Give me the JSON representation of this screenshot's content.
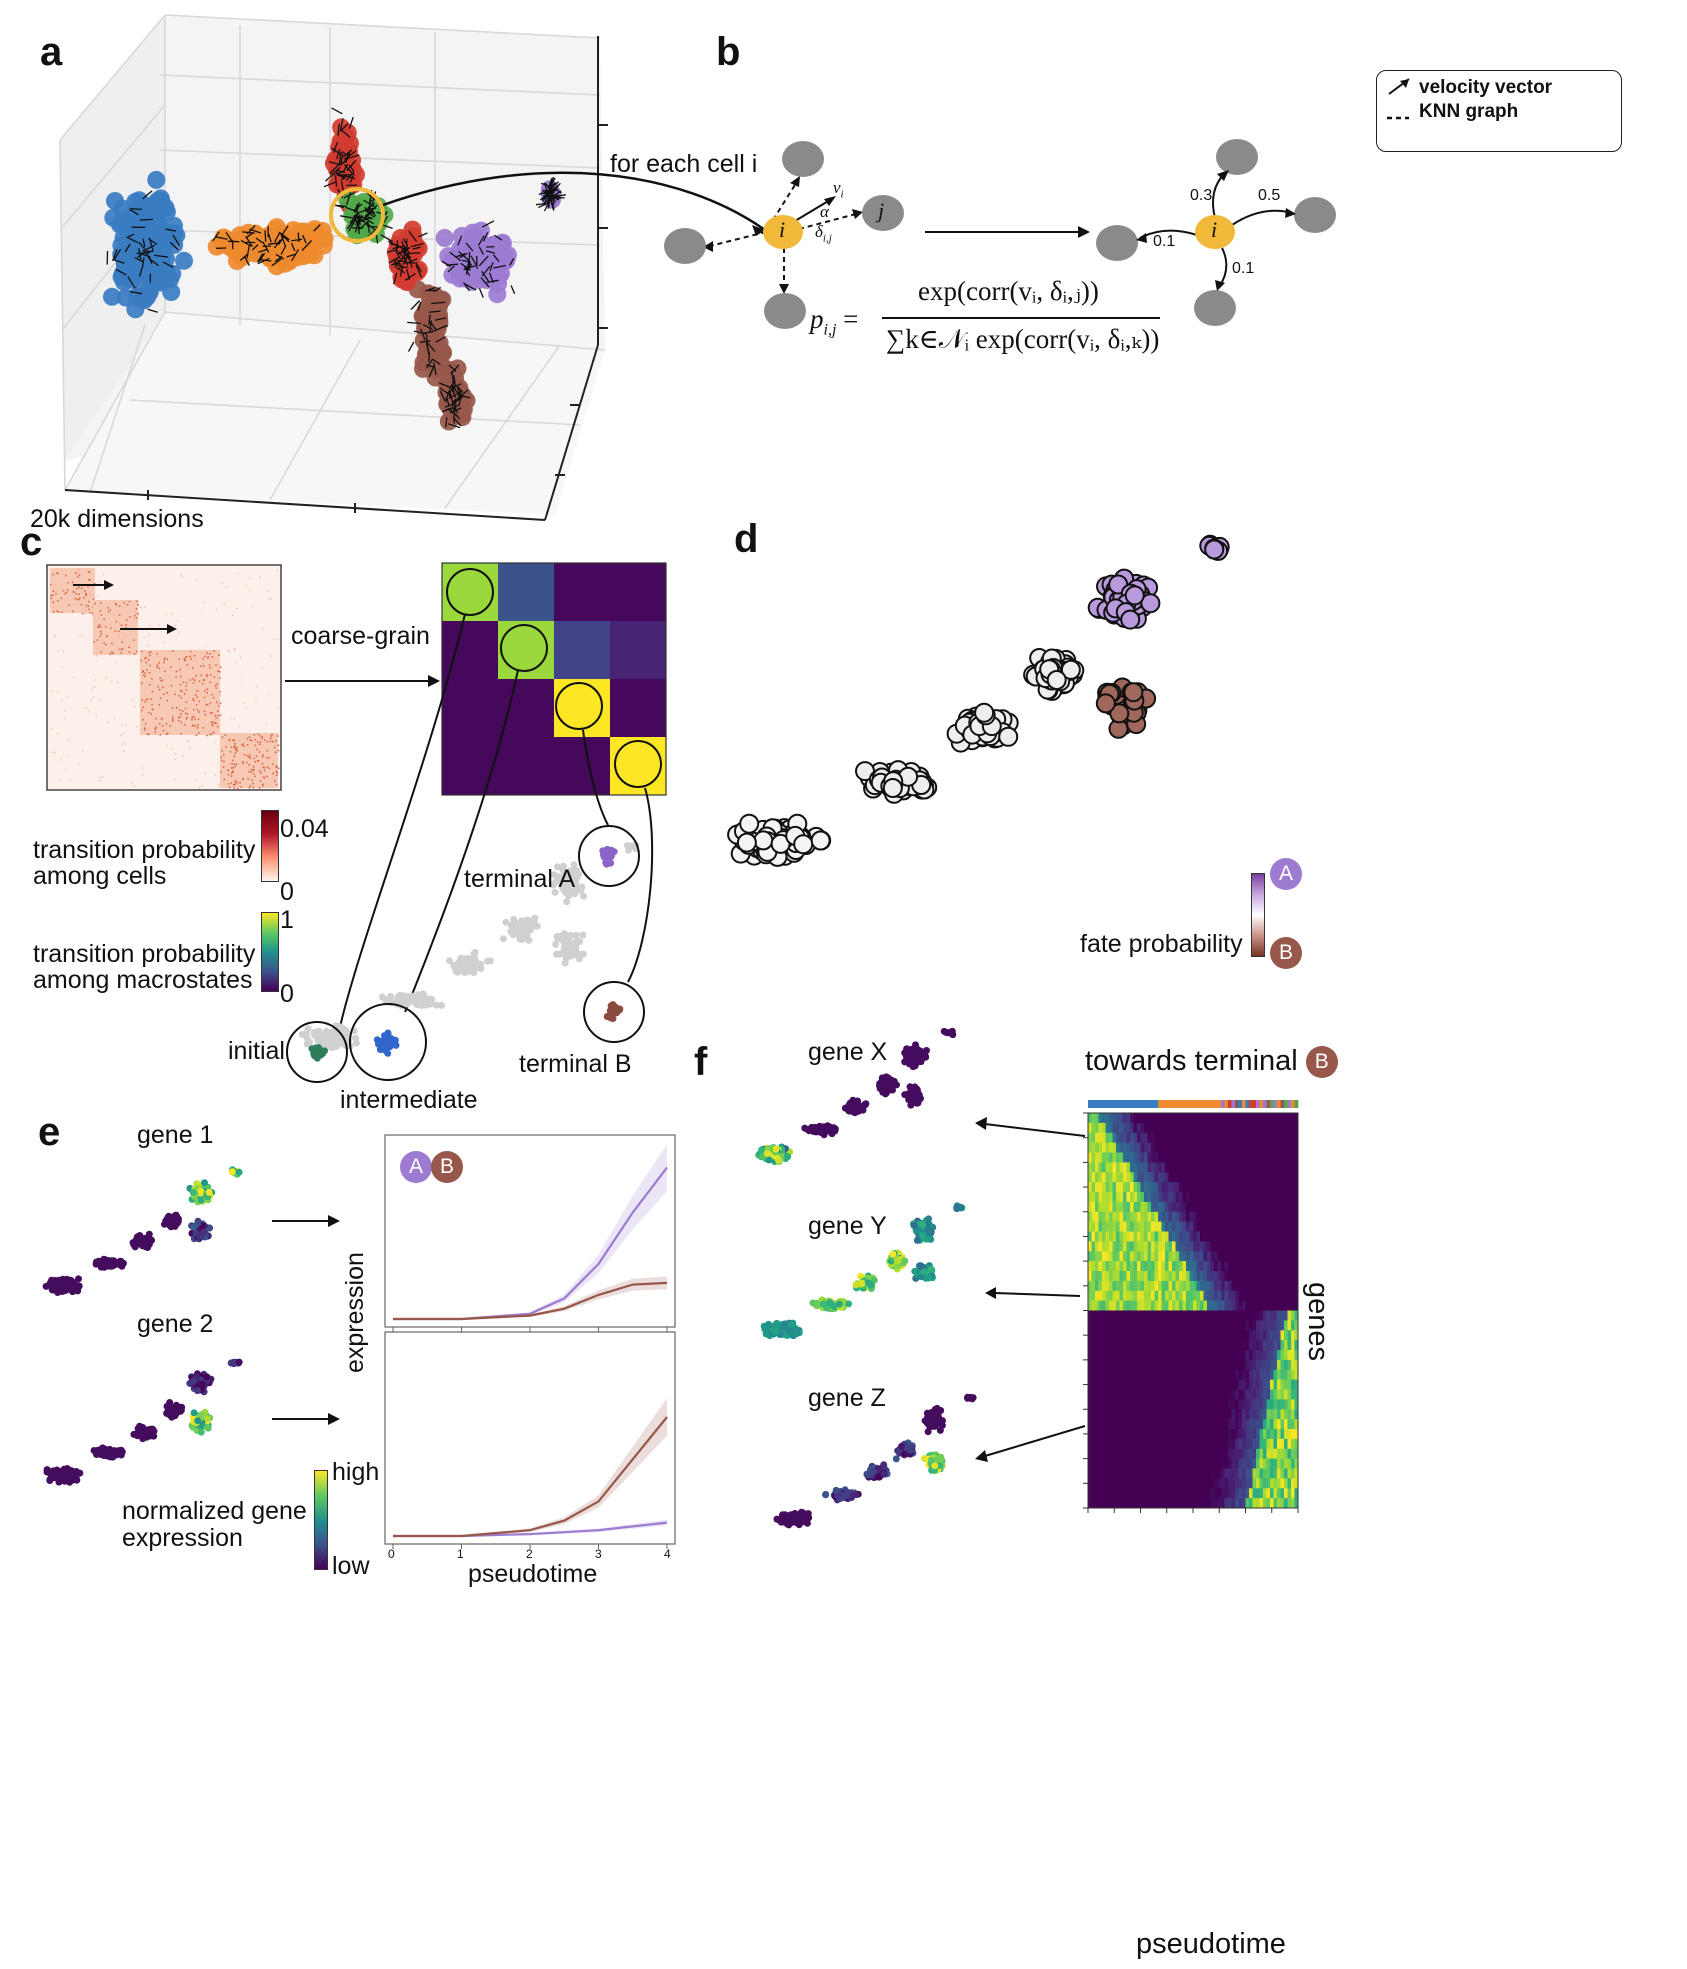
{
  "panels": {
    "a": "a",
    "b": "b",
    "c": "c",
    "d": "d",
    "e": "e",
    "f": "f"
  },
  "panel_a": {
    "dimension_label": "20k dimensions"
  },
  "panel_b": {
    "step_label": "for each cell i",
    "legend": {
      "velocity": "velocity vector",
      "knn": "KNN graph"
    },
    "node_i": "i",
    "node_j": "j",
    "vec_v": "v",
    "vec_v_sub": "i",
    "angle": "α",
    "delta": "δ",
    "delta_sub": "i,j",
    "formula_lhs": "p",
    "formula_lhs_sub": "i,j",
    "formula_eq": "=",
    "formula_num": "exp(corr(vᵢ, δᵢ,ⱼ))",
    "formula_den": "∑k∈𝒩ᵢ exp(corr(vᵢ, δᵢ,ₖ))",
    "weights": [
      "0.3",
      "0.5",
      "0.1",
      "0.1"
    ]
  },
  "panel_c": {
    "coarse_grain": "coarse-grain",
    "cb1_label_1": "transition probability",
    "cb1_label_2": "among cells",
    "cb1_max": "0.04",
    "cb1_min": "0",
    "cb2_label_1": "transition probability",
    "cb2_label_2": "among macrostates",
    "cb2_max": "1",
    "cb2_min": "0",
    "states": {
      "initial": "initial",
      "intermediate": "intermediate",
      "terminal_a": "terminal A",
      "terminal_b": "terminal B"
    },
    "macro_matrix": [
      [
        0.85,
        0.25,
        0.02,
        0.02
      ],
      [
        0.02,
        0.85,
        0.2,
        0.1
      ],
      [
        0.02,
        0.02,
        1.0,
        0.02
      ],
      [
        0.02,
        0.02,
        0.02,
        1.0
      ]
    ]
  },
  "panel_d": {
    "fate_label": "fate probability",
    "badge_a": "A",
    "badge_b": "B"
  },
  "panel_e": {
    "gene1": "gene 1",
    "gene2": "gene 2",
    "ylabel": "expression",
    "xlabel": "pseudotime",
    "badge_a": "A",
    "badge_b": "B",
    "cbar_title_1": "normalized gene",
    "cbar_title_2": "expression",
    "cbar_high": "high",
    "cbar_low": "low",
    "xticks": [
      "0",
      "1",
      "2",
      "3",
      "4"
    ]
  },
  "panel_f": {
    "gene_x": "gene X",
    "gene_y": "gene Y",
    "gene_z": "gene Z",
    "title": "towards terminal",
    "badge_b": "B",
    "ylabel": "genes",
    "xlabel": "pseudotime"
  },
  "colors": {
    "blue": "#3a7cc2",
    "orange": "#ee8a2e",
    "green": "#52a84a",
    "red": "#d13c30",
    "purple": "#9c7bd1",
    "brown": "#97574a",
    "yellow_node": "#f0b93a",
    "gray_node": "#8a8a8a",
    "viridis_low": "#440154",
    "viridis_high": "#fde725"
  },
  "chart_data": [
    {
      "type": "line",
      "title": "",
      "xlabel": "pseudotime",
      "ylabel": "expression",
      "xlim": [
        0,
        4
      ],
      "series": [
        {
          "name": "A",
          "x": [
            0,
            1,
            2,
            2.5,
            3,
            3.5,
            4
          ],
          "y": [
            0.0,
            0.0,
            0.03,
            0.12,
            0.32,
            0.62,
            0.88
          ]
        },
        {
          "name": "B",
          "x": [
            0,
            1,
            2,
            2.5,
            3,
            3.5,
            4
          ],
          "y": [
            0.0,
            0.0,
            0.02,
            0.06,
            0.14,
            0.2,
            0.21
          ]
        }
      ]
    },
    {
      "type": "line",
      "title": "",
      "xlabel": "pseudotime",
      "ylabel": "expression",
      "xlim": [
        0,
        4
      ],
      "series": [
        {
          "name": "A",
          "x": [
            0,
            1,
            2,
            2.5,
            3,
            3.5,
            4
          ],
          "y": [
            0.0,
            0.0,
            0.01,
            0.02,
            0.03,
            0.05,
            0.07
          ]
        },
        {
          "name": "B",
          "x": [
            0,
            1,
            2,
            2.5,
            3,
            3.5,
            4
          ],
          "y": [
            0.0,
            0.0,
            0.03,
            0.08,
            0.18,
            0.4,
            0.62
          ]
        }
      ]
    }
  ]
}
